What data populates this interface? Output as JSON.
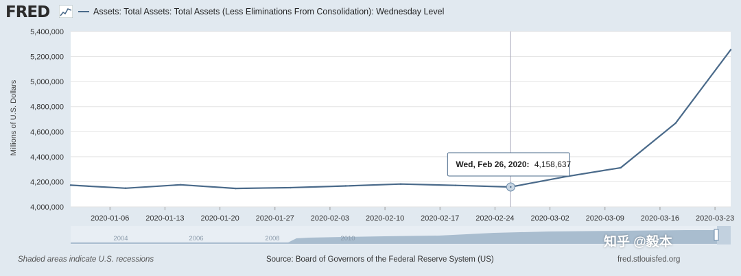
{
  "header": {
    "logo": "FRED",
    "logo_icon": "sparkline-icon",
    "series_title": "Assets: Total Assets: Total Assets (Less Eliminations From Consolidation): Wednesday Level"
  },
  "colors": {
    "line": "#4a6a8a",
    "plot_bg": "#ffffff",
    "page_bg": "#e1e9f0",
    "nav_fill": "#a9bdcf"
  },
  "chart_data": {
    "type": "line",
    "title": "Assets: Total Assets: Total Assets (Less Eliminations From Consolidation): Wednesday Level",
    "ylabel": "Millions of U.S. Dollars",
    "xlabel": "",
    "ylim": [
      4000000,
      5400000
    ],
    "yticks": [
      4000000,
      4200000,
      4400000,
      4600000,
      4800000,
      5000000,
      5200000,
      5400000
    ],
    "ytick_labels": [
      "4,000,000",
      "4,200,000",
      "4,400,000",
      "4,600,000",
      "4,800,000",
      "5,000,000",
      "5,200,000",
      "5,400,000"
    ],
    "xlim": [
      "2020-01-01",
      "2020-03-25"
    ],
    "xtick_labels": [
      "2020-01-06",
      "2020-01-13",
      "2020-01-20",
      "2020-01-27",
      "2020-02-03",
      "2020-02-10",
      "2020-02-17",
      "2020-02-24",
      "2020-03-02",
      "2020-03-09",
      "2020-03-16",
      "2020-03-23"
    ],
    "grid": true,
    "x": [
      "2020-01-01",
      "2020-01-08",
      "2020-01-15",
      "2020-01-22",
      "2020-01-29",
      "2020-02-05",
      "2020-02-12",
      "2020-02-19",
      "2020-02-26",
      "2020-03-04",
      "2020-03-11",
      "2020-03-18",
      "2020-03-25"
    ],
    "values": [
      4173000,
      4149000,
      4176000,
      4147000,
      4153000,
      4167000,
      4182000,
      4171000,
      4158637,
      4241000,
      4312000,
      4669000,
      5254000
    ],
    "tooltip": {
      "date": "Wed, Feb 26, 2020:",
      "value": "4,158,637",
      "x": "2020-02-26"
    },
    "navigator_labels": [
      "2004",
      "2006",
      "2008",
      "2010"
    ]
  },
  "footer": {
    "note": "Shaded areas indicate U.S. recessions",
    "source": "Source: Board of Governors of the Federal Reserve System (US)",
    "site": "fred.stlouisfed.org"
  },
  "watermark": "知乎 @毅本"
}
